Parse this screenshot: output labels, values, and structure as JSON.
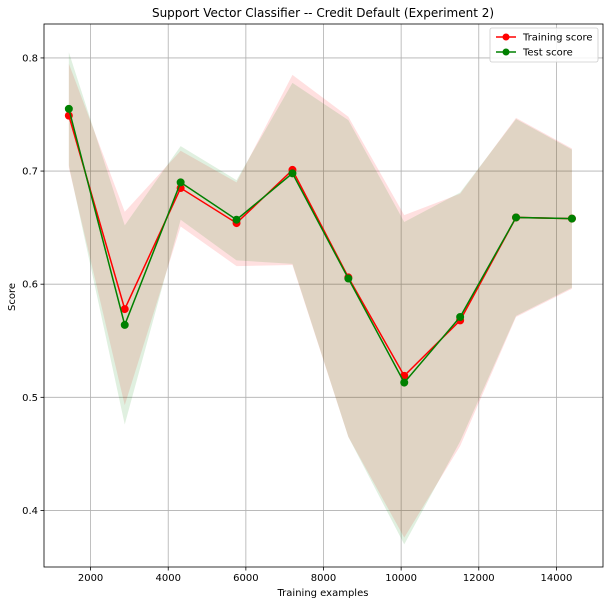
{
  "chart_data": {
    "type": "line",
    "title": "Support Vector Classifier -- Credit Default (Experiment 2)",
    "xlabel": "Training examples",
    "ylabel": "Score",
    "xlim": [
      800,
      15200
    ],
    "ylim": [
      0.35,
      0.83
    ],
    "xticks": [
      2000,
      4000,
      6000,
      8000,
      10000,
      12000,
      14000
    ],
    "yticks": [
      0.4,
      0.5,
      0.6,
      0.7,
      0.8
    ],
    "grid": true,
    "legend_position": "top-right",
    "x": [
      1440,
      2880,
      4320,
      5760,
      7200,
      8640,
      10080,
      11520,
      12960,
      14400
    ],
    "series": [
      {
        "name": "Training score",
        "color": "#ff0000",
        "band_color": "#ff0000",
        "values": [
          0.749,
          0.578,
          0.685,
          0.654,
          0.701,
          0.606,
          0.519,
          0.568,
          0.659,
          0.658
        ],
        "band_upper": [
          0.795,
          0.664,
          0.718,
          0.69,
          0.785,
          0.748,
          0.661,
          0.68,
          0.747,
          0.72
        ],
        "band_lower": [
          0.703,
          0.493,
          0.651,
          0.616,
          0.617,
          0.465,
          0.376,
          0.457,
          0.571,
          0.596
        ]
      },
      {
        "name": "Test score",
        "color": "#008000",
        "band_color": "#008000",
        "values": [
          0.755,
          0.564,
          0.69,
          0.657,
          0.698,
          0.605,
          0.513,
          0.571,
          0.659,
          0.658
        ],
        "band_upper": [
          0.805,
          0.652,
          0.722,
          0.692,
          0.778,
          0.745,
          0.655,
          0.681,
          0.746,
          0.719
        ],
        "band_lower": [
          0.705,
          0.476,
          0.657,
          0.621,
          0.618,
          0.465,
          0.37,
          0.461,
          0.572,
          0.597
        ]
      }
    ]
  }
}
